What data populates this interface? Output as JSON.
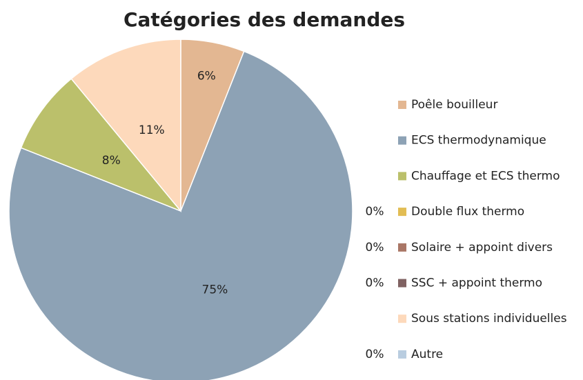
{
  "chart_data": {
    "type": "pie",
    "title": "Catégories des demandes",
    "categories": [
      "Poêle bouilleur",
      "ECS thermodynamique",
      "Chauffage et ECS thermo",
      "Double flux thermo",
      "Solaire + appoint divers",
      "SSC + appoint thermo",
      "Sous stations individuelles",
      "Autre"
    ],
    "values": [
      6,
      75,
      8,
      0,
      0,
      0,
      11,
      0
    ],
    "value_labels": [
      "6%",
      "75%",
      "8%",
      "0%",
      "0%",
      "0%",
      "11%",
      "0%"
    ],
    "colors": [
      "#e3b792",
      "#8da2b5",
      "#bbc06b",
      "#e2bd54",
      "#a97666",
      "#806262",
      "#fdd9bb",
      "#b9cde0"
    ],
    "legend": "right"
  }
}
